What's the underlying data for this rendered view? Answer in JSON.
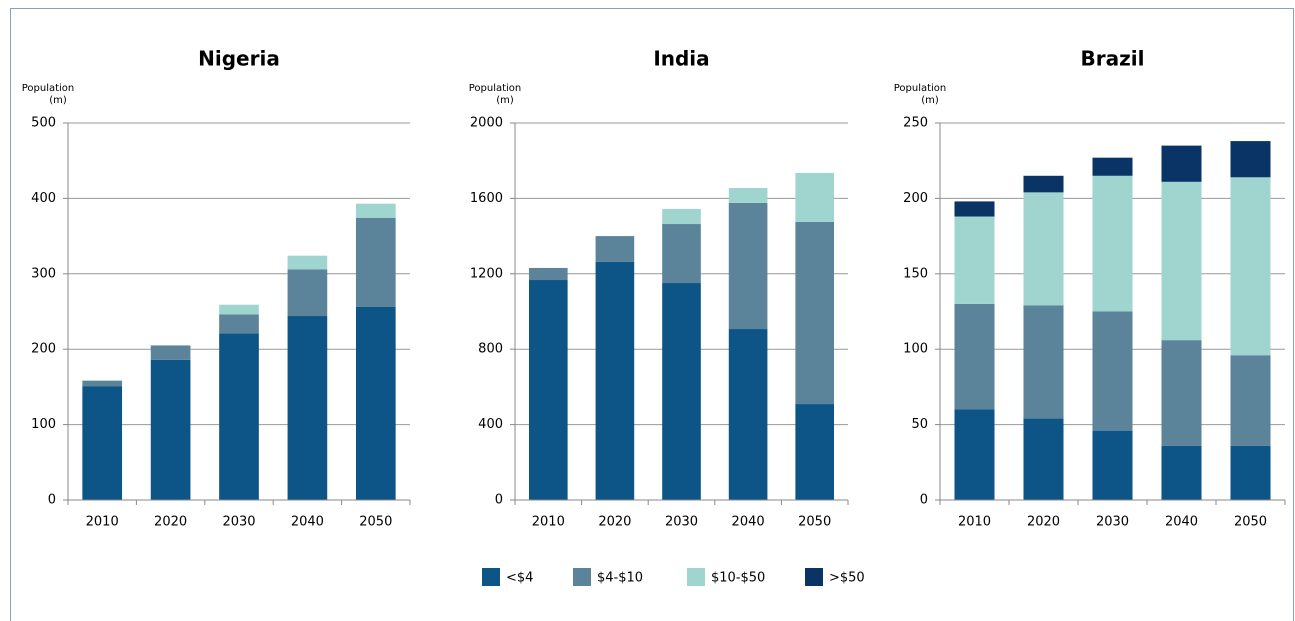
{
  "chart_data": [
    {
      "type": "bar",
      "stacked": true,
      "title": "Nigeria",
      "y_label": [
        "Population",
        "(m)"
      ],
      "categories": [
        "2010",
        "2020",
        "2030",
        "2040",
        "2050"
      ],
      "ylim": [
        0,
        500
      ],
      "yticks": [
        0,
        100,
        200,
        300,
        400,
        500
      ],
      "grid": true,
      "series": [
        {
          "name": "<$4",
          "color": "#0e5587",
          "values": [
            151,
            186,
            221,
            244,
            256
          ]
        },
        {
          "name": "$4-$10",
          "color": "#5b8399",
          "values": [
            7,
            19,
            25,
            62,
            118
          ]
        },
        {
          "name": "$10-$50",
          "color": "#9fd4cf",
          "values": [
            1,
            0,
            13,
            18,
            19
          ]
        },
        {
          "name": ">$50",
          "color": "#0a3466",
          "values": [
            0,
            0,
            0,
            0,
            0
          ]
        }
      ]
    },
    {
      "type": "bar",
      "stacked": true,
      "title": "India",
      "y_label": [
        "Population",
        "(m)"
      ],
      "categories": [
        "2010",
        "2020",
        "2030",
        "2040",
        "2050"
      ],
      "ylim": [
        0,
        2000
      ],
      "yticks": [
        0,
        400,
        800,
        1200,
        1600,
        2000
      ],
      "grid": true,
      "series": [
        {
          "color": "#0e5587",
          "values": [
            1167,
            1263,
            1151,
            907,
            509
          ]
        },
        {
          "color": "#5b8399",
          "values": [
            64,
            137,
            313,
            669,
            966
          ]
        },
        {
          "color": "#9fd4cf",
          "values": [
            0,
            0,
            80,
            79,
            260
          ]
        },
        {
          "color": "#0a3466",
          "values": [
            0,
            0,
            0,
            0,
            0
          ]
        }
      ]
    },
    {
      "type": "bar",
      "stacked": true,
      "title": "Brazil",
      "y_label": [
        "Population",
        "(m)"
      ],
      "categories": [
        "2010",
        "2020",
        "2030",
        "2040",
        "2050"
      ],
      "ylim": [
        0,
        250
      ],
      "yticks": [
        0,
        50,
        100,
        150,
        200,
        250
      ],
      "grid": true,
      "series": [
        {
          "color": "#0e5587",
          "values": [
            60,
            54,
            46,
            36,
            36
          ]
        },
        {
          "color": "#5b8399",
          "values": [
            70,
            75,
            79,
            70,
            60
          ]
        },
        {
          "color": "#9fd4cf",
          "values": [
            58,
            75,
            90,
            105,
            118
          ]
        },
        {
          "color": "#0a3466",
          "values": [
            10,
            11,
            12,
            24,
            24
          ]
        }
      ]
    }
  ]
}
